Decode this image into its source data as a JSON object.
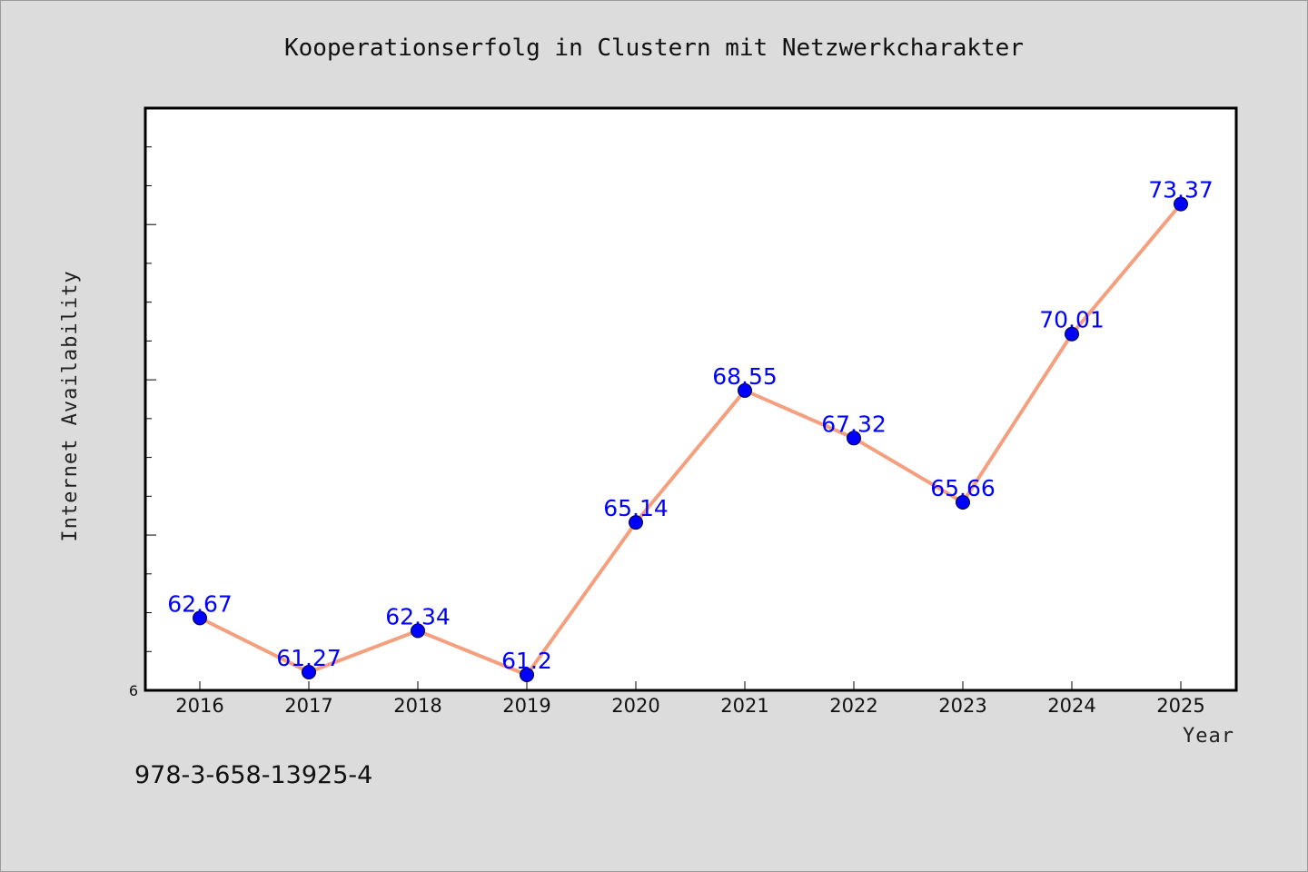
{
  "chart_data": {
    "type": "line",
    "title": "Kooperationserfolg in Clustern mit Netzwerkcharakter",
    "xlabel": "Year",
    "ylabel": "Internet Availability",
    "categories": [
      "2016",
      "2017",
      "2018",
      "2019",
      "2020",
      "2021",
      "2022",
      "2023",
      "2024",
      "2025"
    ],
    "values": [
      62.67,
      61.27,
      62.34,
      61.2,
      65.14,
      68.55,
      67.32,
      65.66,
      70.01,
      73.37
    ],
    "data_labels": [
      "62.67",
      "61.27",
      "62.34",
      "61.2",
      "65.14",
      "68.55",
      "67.32",
      "65.66",
      "70.01",
      "73.37"
    ],
    "y_tick_labels": [
      "6"
    ],
    "ylim": [
      60.8,
      75.85
    ],
    "grid": false,
    "legend": "none",
    "line_color": "#f4a07e",
    "marker_color": "#0000ff",
    "label_color": "#0000ff"
  },
  "footer": {
    "isbn": "978-3-658-13925-4"
  }
}
